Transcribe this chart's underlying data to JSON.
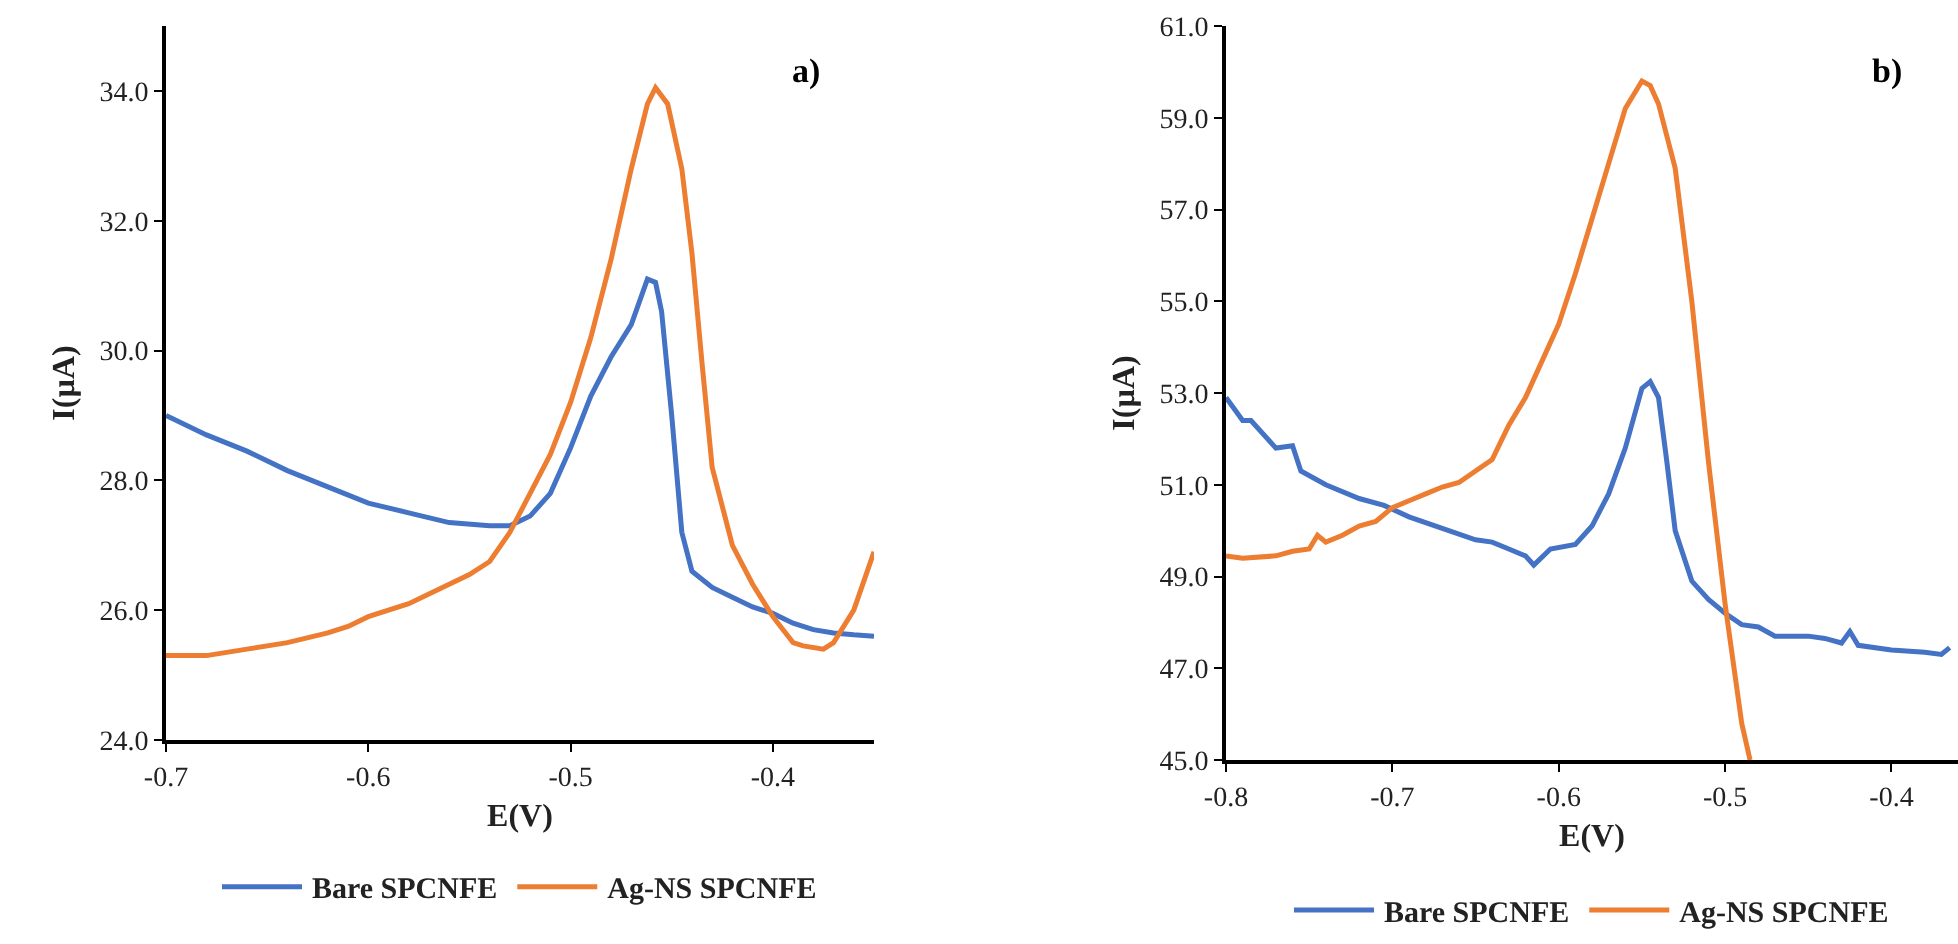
{
  "chart_data": [
    {
      "type": "line",
      "xlabel": "E(V)",
      "ylabel": "I(µA)",
      "annotations": [
        "a)"
      ],
      "legend": "bottom",
      "grid": false,
      "marker": "none",
      "line_style": "solid",
      "xlim": [
        -0.7,
        -0.35
      ],
      "xticks": [
        -0.7,
        -0.6,
        -0.5,
        -0.4
      ],
      "ylim": [
        24,
        35
      ],
      "yticks": [
        {
          "value": 24,
          "label": "24.0"
        },
        {
          "value": 26,
          "label": "26.0"
        },
        {
          "value": 28,
          "label": "28.0"
        },
        {
          "value": 30,
          "label": "30.0"
        },
        {
          "value": 32,
          "label": "32.0"
        },
        {
          "value": 34,
          "label": "34.0"
        }
      ],
      "series": [
        {
          "name": "Bare SPCNFE",
          "color": "#4472c4",
          "x": [
            -0.7,
            -0.68,
            -0.66,
            -0.64,
            -0.62,
            -0.6,
            -0.58,
            -0.56,
            -0.54,
            -0.53,
            -0.52,
            -0.51,
            -0.5,
            -0.49,
            -0.48,
            -0.47,
            -0.462,
            -0.458,
            -0.455,
            -0.45,
            -0.445,
            -0.44,
            -0.43,
            -0.42,
            -0.41,
            -0.4,
            -0.39,
            -0.38,
            -0.37,
            -0.36,
            -0.35
          ],
          "values": [
            29.0,
            28.7,
            28.45,
            28.15,
            27.9,
            27.65,
            27.5,
            27.35,
            27.3,
            27.3,
            27.45,
            27.8,
            28.5,
            29.3,
            29.9,
            30.4,
            31.1,
            31.05,
            30.6,
            29.0,
            27.2,
            26.6,
            26.35,
            26.2,
            26.05,
            25.95,
            25.8,
            25.7,
            25.65,
            25.62,
            25.6
          ]
        },
        {
          "name": "Ag-NS SPCNFE",
          "color": "#ed7d31",
          "x": [
            -0.7,
            -0.68,
            -0.66,
            -0.64,
            -0.62,
            -0.61,
            -0.6,
            -0.58,
            -0.56,
            -0.55,
            -0.54,
            -0.53,
            -0.52,
            -0.51,
            -0.5,
            -0.49,
            -0.48,
            -0.47,
            -0.462,
            -0.458,
            -0.452,
            -0.445,
            -0.44,
            -0.435,
            -0.43,
            -0.42,
            -0.41,
            -0.4,
            -0.39,
            -0.385,
            -0.375,
            -0.37,
            -0.36,
            -0.35
          ],
          "values": [
            25.3,
            25.3,
            25.4,
            25.5,
            25.65,
            25.75,
            25.9,
            26.1,
            26.4,
            26.55,
            26.75,
            27.2,
            27.8,
            28.4,
            29.2,
            30.2,
            31.4,
            32.8,
            33.8,
            34.05,
            33.8,
            32.8,
            31.5,
            29.8,
            28.2,
            27.0,
            26.4,
            25.9,
            25.5,
            25.45,
            25.4,
            25.5,
            26.0,
            26.9
          ]
        }
      ]
    },
    {
      "type": "line",
      "xlabel": "E(V)",
      "ylabel": "I(µA)",
      "annotations": [
        "b)"
      ],
      "legend": "bottom",
      "grid": false,
      "marker": "none",
      "line_style": "solid",
      "xlim": [
        -0.8,
        -0.36
      ],
      "xticks": [
        -0.8,
        -0.7,
        -0.6,
        -0.5,
        -0.4
      ],
      "ylim": [
        45,
        61
      ],
      "yticks": [
        {
          "value": 45,
          "label": "45.0"
        },
        {
          "value": 47,
          "label": "47.0"
        },
        {
          "value": 49,
          "label": "49.0"
        },
        {
          "value": 51,
          "label": "51.0"
        },
        {
          "value": 53,
          "label": "53.0"
        },
        {
          "value": 55,
          "label": "55.0"
        },
        {
          "value": 57,
          "label": "57.0"
        },
        {
          "value": 59,
          "label": "59.0"
        },
        {
          "value": 61,
          "label": "61.0"
        }
      ],
      "series": [
        {
          "name": "Bare SPCNFE",
          "color": "#4472c4",
          "x": [
            -0.8,
            -0.79,
            -0.785,
            -0.77,
            -0.76,
            -0.755,
            -0.74,
            -0.72,
            -0.705,
            -0.69,
            -0.67,
            -0.65,
            -0.64,
            -0.63,
            -0.62,
            -0.615,
            -0.605,
            -0.59,
            -0.58,
            -0.57,
            -0.56,
            -0.55,
            -0.545,
            -0.54,
            -0.535,
            -0.53,
            -0.52,
            -0.51,
            -0.5,
            -0.49,
            -0.48,
            -0.47,
            -0.45,
            -0.44,
            -0.43,
            -0.425,
            -0.42,
            -0.4,
            -0.38,
            -0.37,
            -0.365
          ],
          "values": [
            52.9,
            52.4,
            52.4,
            51.8,
            51.85,
            51.3,
            51.0,
            50.7,
            50.55,
            50.3,
            50.05,
            49.8,
            49.75,
            49.6,
            49.45,
            49.25,
            49.6,
            49.7,
            50.1,
            50.8,
            51.8,
            53.1,
            53.25,
            52.9,
            51.5,
            50.0,
            48.9,
            48.5,
            48.2,
            47.95,
            47.9,
            47.7,
            47.7,
            47.65,
            47.55,
            47.8,
            47.5,
            47.4,
            47.35,
            47.3,
            47.45
          ]
        },
        {
          "name": "Ag-NS SPCNFE",
          "color": "#ed7d31",
          "x": [
            -0.8,
            -0.79,
            -0.77,
            -0.76,
            -0.75,
            -0.745,
            -0.74,
            -0.73,
            -0.72,
            -0.71,
            -0.7,
            -0.69,
            -0.68,
            -0.67,
            -0.66,
            -0.65,
            -0.64,
            -0.63,
            -0.62,
            -0.61,
            -0.6,
            -0.59,
            -0.58,
            -0.57,
            -0.56,
            -0.55,
            -0.545,
            -0.54,
            -0.53,
            -0.52,
            -0.51,
            -0.5,
            -0.49,
            -0.485
          ],
          "values": [
            49.45,
            49.4,
            49.45,
            49.55,
            49.6,
            49.9,
            49.75,
            49.9,
            50.1,
            50.2,
            50.5,
            50.65,
            50.8,
            50.95,
            51.05,
            51.3,
            51.55,
            52.3,
            52.9,
            53.7,
            54.5,
            55.6,
            56.8,
            58.0,
            59.2,
            59.8,
            59.7,
            59.3,
            57.9,
            55.0,
            51.5,
            48.4,
            45.8,
            45.0
          ]
        }
      ]
    }
  ]
}
